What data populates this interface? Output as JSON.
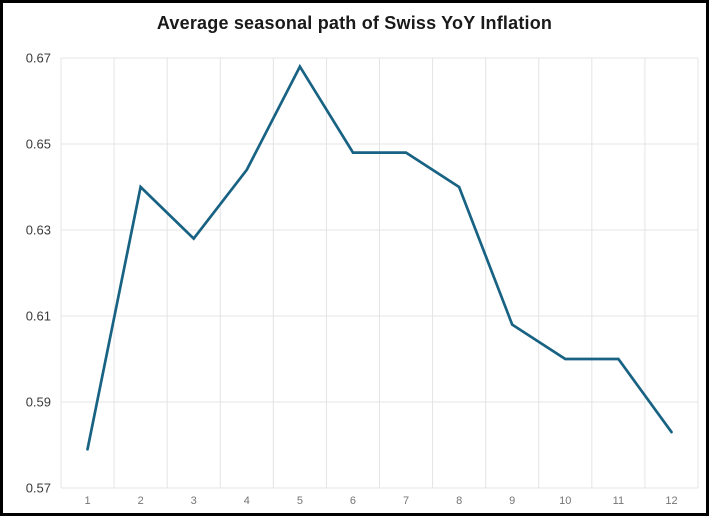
{
  "window": {
    "background": "#ffffff",
    "border_color": "#000000"
  },
  "chart_data": {
    "type": "line",
    "title": "Average seasonal path of Swiss YoY Inflation",
    "x": [
      1,
      2,
      3,
      4,
      5,
      6,
      7,
      8,
      9,
      10,
      11,
      12
    ],
    "values": [
      0.579,
      0.64,
      0.628,
      0.644,
      0.668,
      0.648,
      0.648,
      0.64,
      0.608,
      0.6,
      0.6,
      0.583
    ],
    "xtick_labels": [
      "1",
      "2",
      "3",
      "4",
      "5",
      "6",
      "7",
      "8",
      "9",
      "10",
      "11",
      "12"
    ],
    "yticks": [
      0.57,
      0.59,
      0.61,
      0.63,
      0.65,
      0.67
    ],
    "ytick_labels": [
      "0.57",
      "0.59",
      "0.61",
      "0.63",
      "0.65",
      "0.67"
    ],
    "ylim": [
      0.57,
      0.67
    ],
    "xlabel": "",
    "ylabel": "",
    "grid": true,
    "legend": false,
    "colors": {
      "line": "#186283",
      "grid": "#e4e4e4",
      "title": "#1a1a1a",
      "ytick_text": "#3a3a3a",
      "xtick_text": "#757575"
    }
  }
}
